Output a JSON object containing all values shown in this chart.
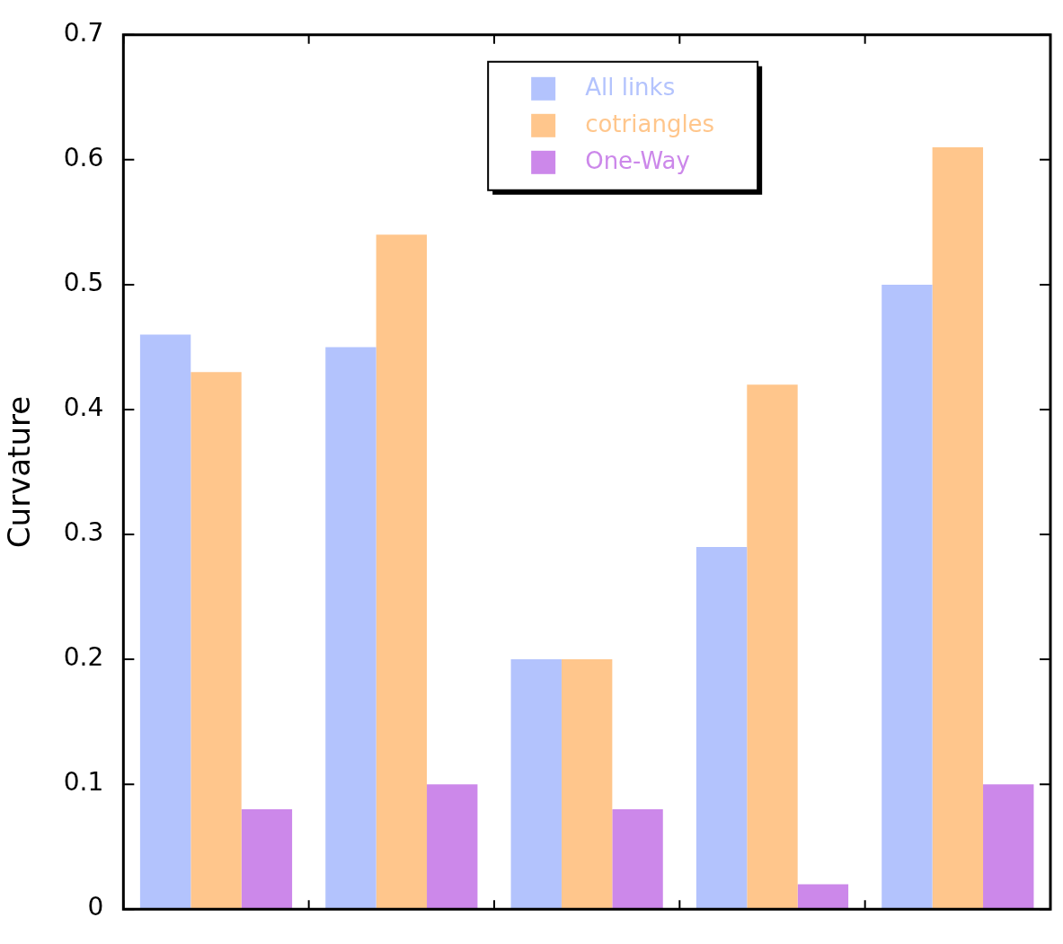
{
  "chart_data": {
    "type": "bar",
    "ylabel": "Curvature",
    "categories": [
      null,
      null,
      null,
      null,
      null
    ],
    "series": [
      {
        "name": "All links",
        "color": "#b3c3fd",
        "values": [
          0.46,
          0.45,
          0.2,
          0.29,
          0.5
        ]
      },
      {
        "name": "cotriangles",
        "color": "#ffc68c",
        "values": [
          0.43,
          0.54,
          0.2,
          0.42,
          0.61
        ]
      },
      {
        "name": "One-Way",
        "color": "#cc88ea",
        "values": [
          0.08,
          0.1,
          0.08,
          0.02,
          0.1
        ]
      }
    ],
    "ylim": [
      0,
      0.7
    ],
    "yticks": [
      0,
      0.1,
      0.2,
      0.3,
      0.4,
      0.5,
      0.6,
      0.7
    ],
    "grid": false,
    "legend": "top",
    "tick_labels": "y"
  }
}
